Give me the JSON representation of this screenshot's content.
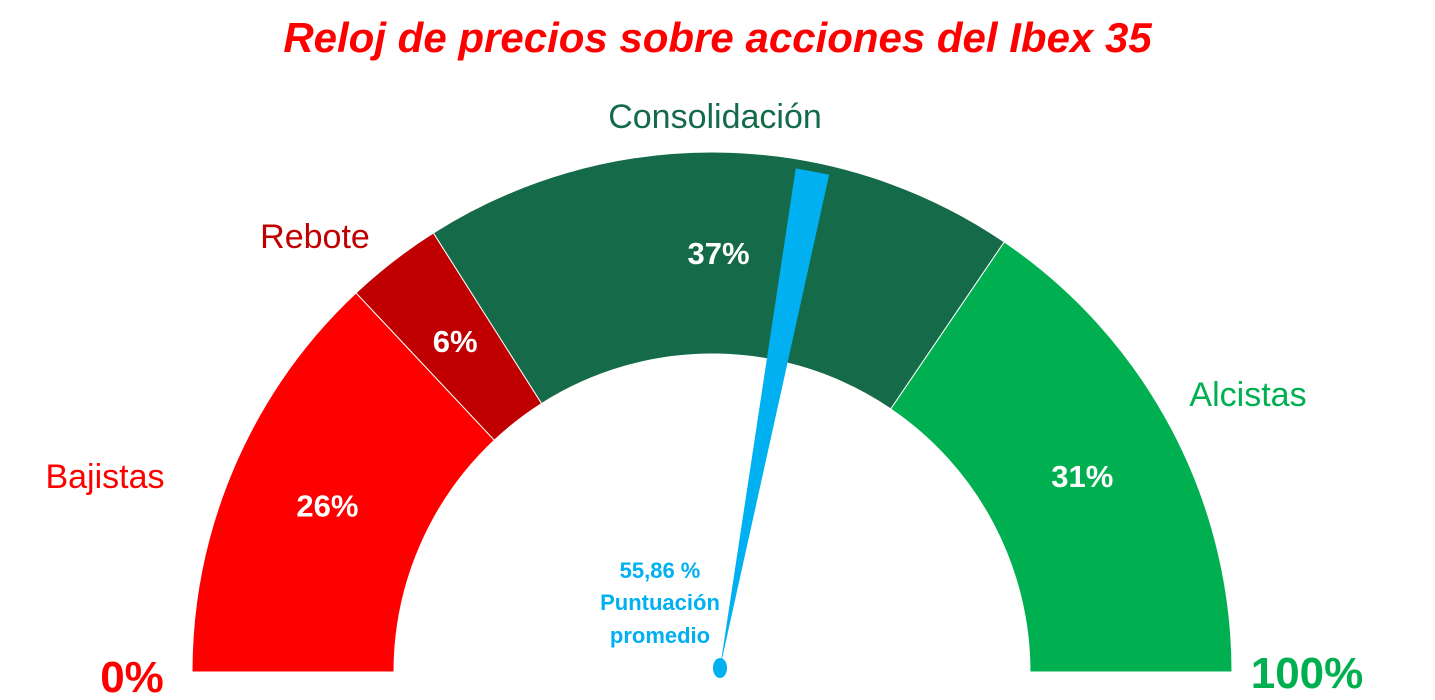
{
  "chart_data": {
    "type": "gauge",
    "title": "Reloj de precios sobre acciones del Ibex 35",
    "segments": [
      {
        "name": "Bajistas",
        "value": 26,
        "label": "26%",
        "color": "#ff0000",
        "label_color": "#ff0000"
      },
      {
        "name": "Rebote",
        "value": 6,
        "label": "6%",
        "color": "#c00000",
        "label_color": "#c00000"
      },
      {
        "name": "Consolidación",
        "value": 37,
        "label": "37%",
        "color": "#156a4a",
        "label_color": "#156a4a"
      },
      {
        "name": "Alcistas",
        "value": 31,
        "label": "31%",
        "color": "#00b050",
        "label_color": "#00b050"
      }
    ],
    "range": [
      0,
      100
    ],
    "min_label": "0%",
    "max_label": "100%",
    "min_label_color": "#ff0000",
    "max_label_color": "#00b050",
    "needle": {
      "value": 55.86,
      "value_label": "55,86 %",
      "caption_line1": "Puntuación",
      "caption_line2": "promedio",
      "color": "#00b0f0"
    }
  }
}
